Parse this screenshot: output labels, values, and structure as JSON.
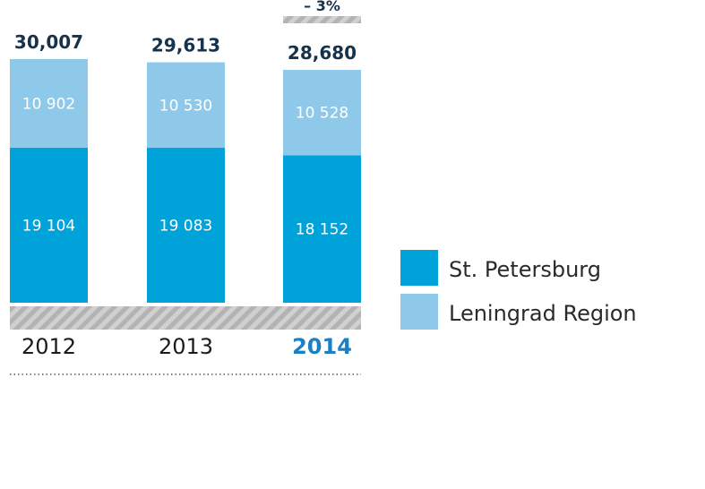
{
  "chart_data": {
    "type": "bar",
    "stacked": true,
    "categories": [
      "2012",
      "2013",
      "2014"
    ],
    "highlight_category": "2014",
    "series": [
      {
        "name": "St. Petersburg",
        "color": "#00a3d9",
        "values": [
          19104,
          19083,
          18152
        ],
        "labels": [
          "19 104",
          "19 083",
          "18 152"
        ]
      },
      {
        "name": "Leningrad Region",
        "color": "#8ec9ea",
        "values": [
          10902,
          10530,
          10528
        ],
        "labels": [
          "10 902",
          "10 530",
          "10 528"
        ]
      }
    ],
    "totals": [
      "30,007",
      "29,613",
      "28,680"
    ],
    "change_annotation": {
      "category": "2014",
      "text": "– 3%"
    },
    "legend_position": "right",
    "grid": false
  }
}
